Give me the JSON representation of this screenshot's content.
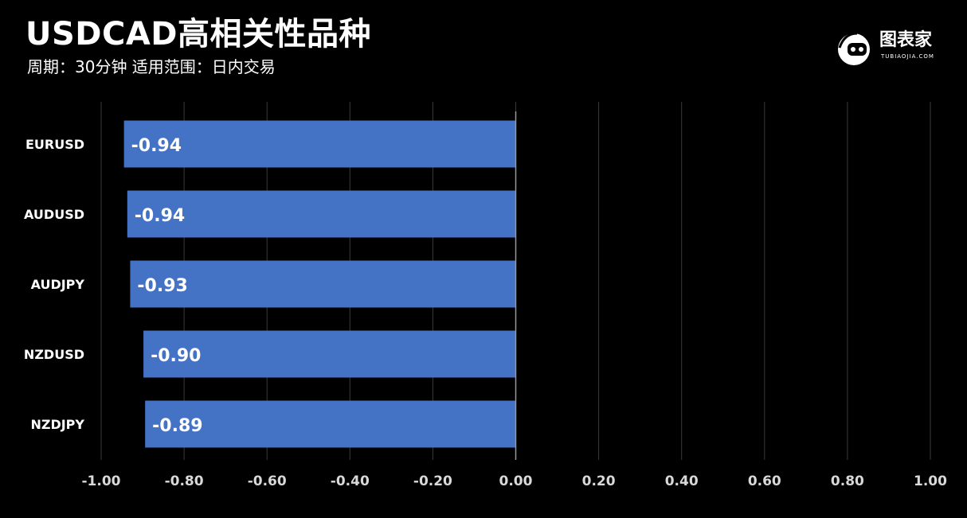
{
  "header": {
    "title": "USDCAD高相关性品种",
    "subtitle": "周期：30分钟  适用范围：日内交易"
  },
  "logo": {
    "text": "图表家",
    "sub": "TUBIAOJIA.COM"
  },
  "colors": {
    "background": "#000000",
    "bar": "#4472c4",
    "grid": "#3a3a3a",
    "text": "#ffffff",
    "axis_text": "#d9d9d9"
  },
  "chart_data": {
    "type": "bar",
    "orientation": "horizontal",
    "categories": [
      "EURUSD",
      "AUDUSD",
      "AUDJPY",
      "NZDUSD",
      "NZDJPY"
    ],
    "values": [
      -0.945,
      -0.937,
      -0.93,
      -0.898,
      -0.894
    ],
    "value_labels": [
      "-0.94",
      "-0.94",
      "-0.93",
      "-0.90",
      "-0.89"
    ],
    "xlim": [
      -1.0,
      1.0
    ],
    "xticks": [
      "-1.00",
      "-0.80",
      "-0.60",
      "-0.40",
      "-0.20",
      "0.00",
      "0.20",
      "0.40",
      "0.60",
      "0.80",
      "1.00"
    ],
    "title": "",
    "xlabel": "",
    "ylabel": "",
    "grid": true
  }
}
